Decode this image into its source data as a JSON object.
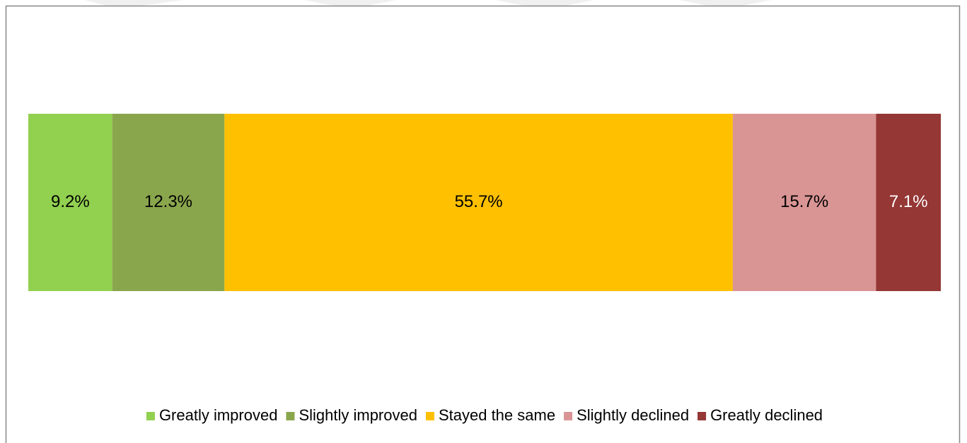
{
  "chart_data": {
    "type": "stacked-bar",
    "orientation": "horizontal",
    "categories": [
      null
    ],
    "series": [
      {
        "name": "Greatly improved",
        "color": "#92d050",
        "values": [
          9.2
        ],
        "value_labels": [
          "9.2%"
        ]
      },
      {
        "name": "Slightly improved",
        "color": "#8aa64d",
        "values": [
          12.3
        ],
        "value_labels": [
          "12.3%"
        ]
      },
      {
        "name": "Stayed the same",
        "color": "#ffc000",
        "values": [
          55.7
        ],
        "value_labels": [
          "55.7%"
        ]
      },
      {
        "name": "Slightly declined",
        "color": "#d99594",
        "values": [
          15.7
        ],
        "value_labels": [
          "15.7%"
        ]
      },
      {
        "name": "Greatly declined",
        "color": "#953735",
        "values": [
          7.1
        ],
        "value_labels": [
          "7.1%"
        ]
      }
    ],
    "xlim": [
      0,
      100
    ],
    "legend": "bottom"
  }
}
